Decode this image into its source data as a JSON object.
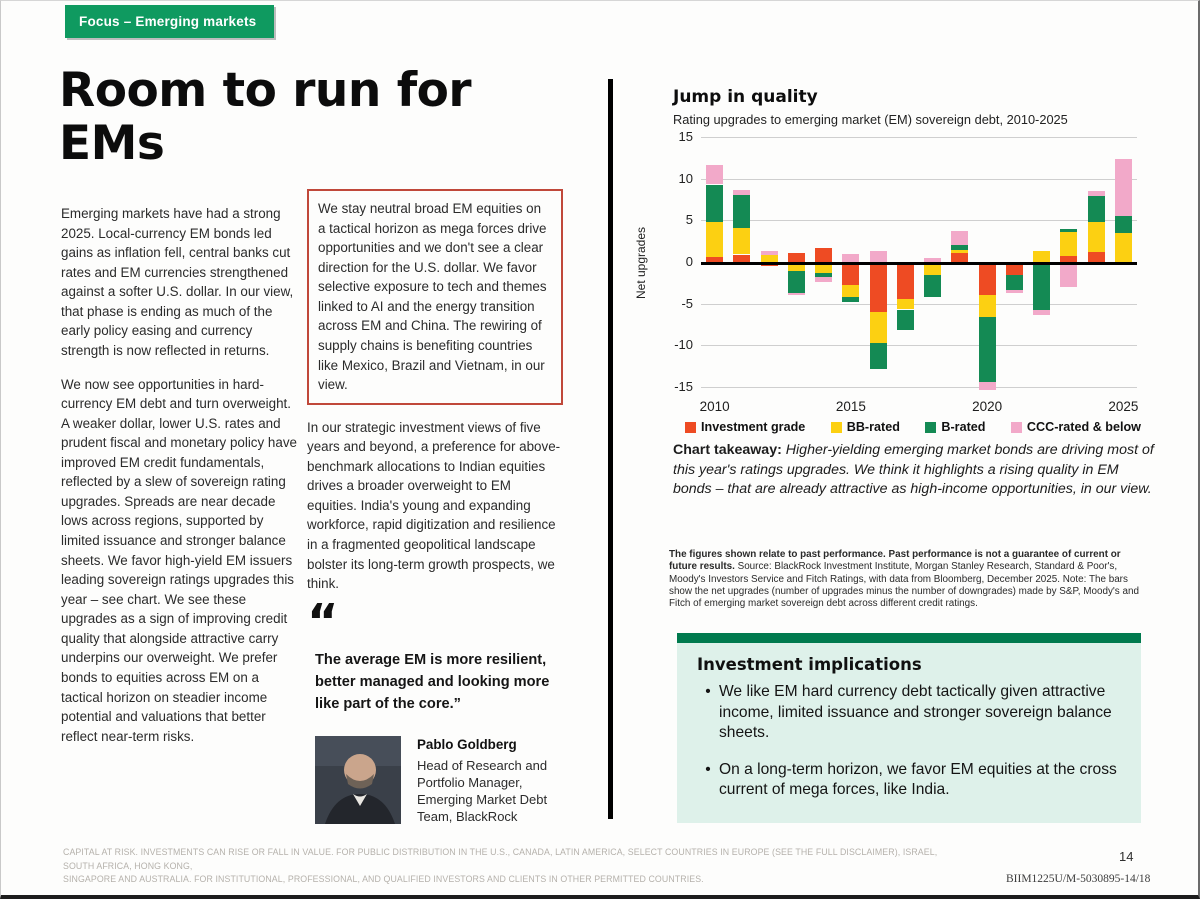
{
  "tag": {
    "label": "Focus –  Emerging markets"
  },
  "title": {
    "line1": "Room to run for",
    "line2": "EMs"
  },
  "article": {
    "col1_p1": "Emerging markets have had a strong 2025. Local-currency EM bonds led gains as inflation fell, central banks cut rates and EM currencies strengthened against a softer U.S. dollar. In our view, that phase is ending as much of the early policy easing and currency strength is now reflected in returns.",
    "col1_p2": "We now see opportunities in hard-currency EM debt and turn overweight. A weaker dollar, lower U.S. rates and prudent fiscal and monetary policy have improved EM credit fundamentals, reflected by a slew of sovereign rating upgrades. Spreads are near decade lows across regions, supported by limited issuance and stronger balance sheets. We favor high-yield EM issuers leading sovereign ratings upgrades this year – see chart. We see these upgrades as a sign of improving credit quality that alongside attractive carry underpins our overweight. We prefer bonds to equities across EM on a tactical horizon on steadier income potential and valuations that better reflect near-term risks.",
    "callout": "We stay neutral broad EM equities on a tactical horizon as mega forces drive opportunities and we don't see a clear direction for the U.S. dollar. We favor selective exposure to tech and themes linked to AI and the energy transition across EM and China. The rewiring of supply chains is benefiting countries like Mexico, Brazil and Vietnam, in our view.",
    "col2_p2": "In our strategic investment views of five years and beyond, a preference for above-benchmark allocations to Indian equities drives a broader overweight to EM equities. India's young and expanding workforce, rapid digitization and resilience in a fragmented geopolitical landscape bolster its long-term growth prospects, we think.",
    "quote_mark": "“",
    "quote": "The average EM is more resilient, better managed and looking more like part of the core.”",
    "author": {
      "name": "Pablo Goldberg",
      "role": "Head of Research and Portfolio Manager, Emerging Market Debt Team, BlackRock"
    }
  },
  "chart_data": {
    "type": "bar",
    "stacked": true,
    "title": "Jump in quality",
    "subtitle": "Rating upgrades to emerging market (EM) sovereign debt, 2010-2025",
    "ylabel": "Net upgrades",
    "xlabel": "",
    "ylim": [
      -15,
      15
    ],
    "yticks": [
      15,
      10,
      5,
      0,
      -5,
      -10,
      -15
    ],
    "xticks": [
      2010,
      2015,
      2020,
      2025
    ],
    "grid": true,
    "legend_position": "bottom",
    "x": [
      2010,
      2011,
      2012,
      2013,
      2014,
      2015,
      2016,
      2017,
      2018,
      2019,
      2020,
      2021,
      2022,
      2023,
      2024,
      2025
    ],
    "series": [
      {
        "name": "Investment grade",
        "color": "#ee4b23",
        "values": [
          0.6,
          0.9,
          -0.5,
          1.1,
          1.7,
          -2.7,
          -6.0,
          -4.4,
          0,
          1.1,
          -4.0,
          -1.5,
          0,
          0.7,
          1.2,
          -0.4
        ]
      },
      {
        "name": "BB-rated",
        "color": "#fcd012",
        "values": [
          4.2,
          3.2,
          0.8,
          -1.1,
          -1.3,
          -1.5,
          -3.7,
          -1.3,
          -1.5,
          0.3,
          -2.6,
          0,
          1.3,
          2.9,
          3.6,
          3.5
        ]
      },
      {
        "name": "B-rated",
        "color": "#148a54",
        "values": [
          4.5,
          3.9,
          0,
          -2.6,
          -0.5,
          -0.6,
          -3.1,
          -2.4,
          -2.7,
          0.6,
          -7.8,
          -1.8,
          -5.8,
          0.4,
          3.1,
          2.0
        ]
      },
      {
        "name": "CCC-rated & below",
        "color": "#f2a9c9",
        "values": [
          2.3,
          0.6,
          0.5,
          -0.3,
          -0.6,
          1.0,
          1.3,
          0,
          0.5,
          1.7,
          -0.9,
          -0.4,
          -0.6,
          -3.0,
          0.6,
          6.9
        ]
      }
    ],
    "takeaway_label": "Chart takeaway:",
    "takeaway": "Higher-yielding emerging market bonds are driving most of this year's ratings upgrades. We think it highlights a rising quality in EM bonds – that are already attractive as high-income opportunities, in our view.",
    "source_bold": "The figures shown relate to past performance. Past performance is not a guarantee of current or future results.",
    "source_rest": " Source: BlackRock Investment Institute, Morgan Stanley Research, Standard & Poor's, Moody's Investors Service and Fitch Ratings, with data from Bloomberg, December 2025. Note: The bars show the net upgrades (number of upgrades minus the number of downgrades) made by S&P, Moody's and Fitch of emerging market sovereign debt across different credit ratings."
  },
  "implications": {
    "heading": "Investment implications",
    "bullets": [
      "We like EM hard currency debt tactically given attractive income, limited issuance and stronger sovereign balance sheets.",
      "On a long-term horizon, we favor EM equities at the cross current of mega forces, like India."
    ]
  },
  "footer": {
    "disclaimer_line1": "CAPITAL AT RISK. INVESTMENTS CAN RISE OR FALL IN VALUE. FOR PUBLIC DISTRIBUTION IN THE U.S., CANADA, LATIN AMERICA,  SELECT COUNTRIES IN EUROPE (SEE THE FULL DISCLAIMER), ISRAEL, SOUTH AFRICA, HONG KONG,",
    "disclaimer_line2": "SINGAPORE AND AUSTRALIA. FOR INSTITUTIONAL, PROFESSIONAL, AND QUALIFIED INVESTORS AND CLIENTS IN OTHER PERMITTED COUNTRIES.",
    "page_number": "14",
    "doc_id": "BIIM1225U/M-5030895-14/18"
  },
  "colors": {
    "brand_green": "#0f9a60",
    "implications_bar_green": "#007a4e",
    "implications_bg": "#def1ea",
    "callout_border_red": "#c0483a",
    "divider_black": "#000000"
  }
}
